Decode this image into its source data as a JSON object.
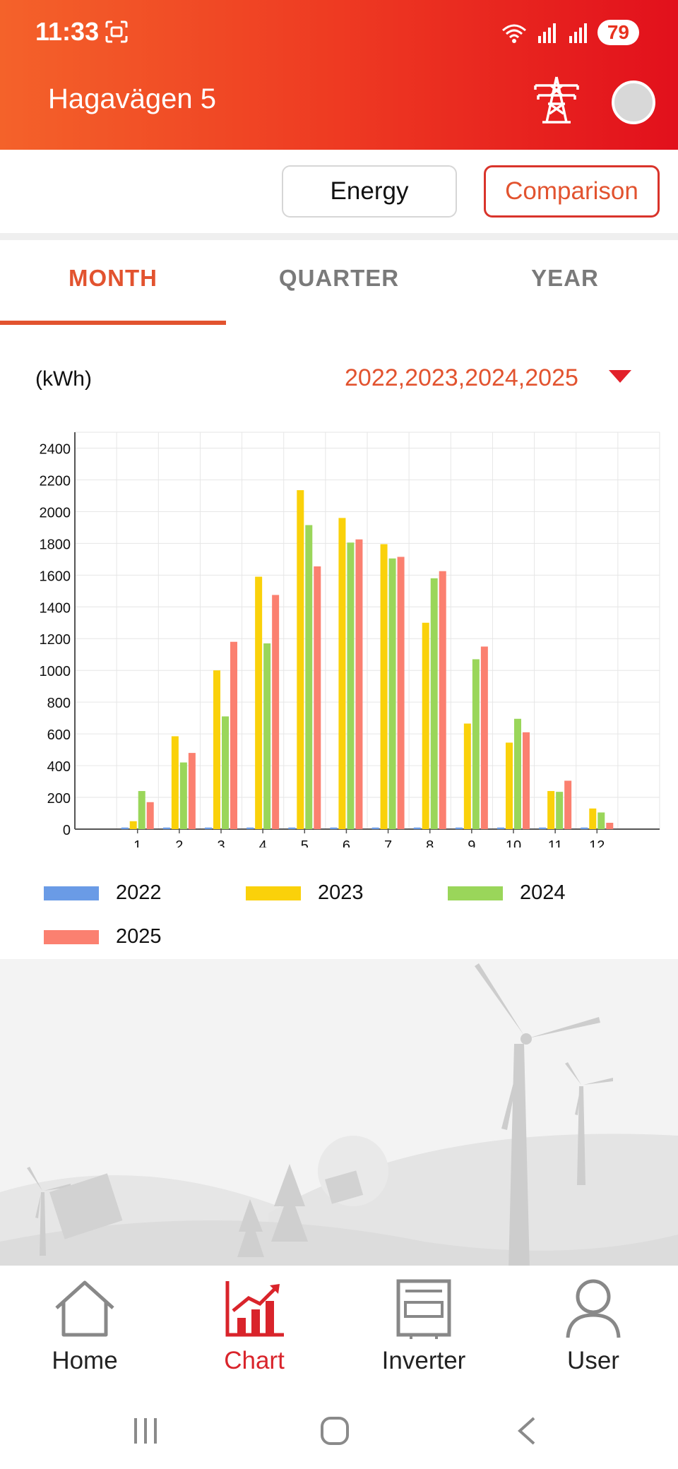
{
  "status_bar": {
    "time": "11:33",
    "battery": "79"
  },
  "header": {
    "title": "Hagavägen 5"
  },
  "mode_buttons": {
    "energy": "Energy",
    "comparison": "Comparison"
  },
  "tabs": [
    {
      "label": "MONTH",
      "active": true
    },
    {
      "label": "QUARTER",
      "active": false
    },
    {
      "label": "YEAR",
      "active": false
    }
  ],
  "unit_label": "(kWh)",
  "year_selector": {
    "value": "2022,2023,2024,2025"
  },
  "chart_data": {
    "type": "bar",
    "categories": [
      "1",
      "2",
      "3",
      "4",
      "5",
      "6",
      "7",
      "8",
      "9",
      "10",
      "11",
      "12"
    ],
    "ylim": [
      0,
      2500
    ],
    "yticks": [
      "0",
      "200",
      "400",
      "600",
      "800",
      "1000",
      "1200",
      "1400",
      "1600",
      "1800",
      "2000",
      "2200",
      "2400"
    ],
    "grid": true,
    "legend_position": "bottom",
    "series": [
      {
        "name": "2022",
        "color": "#6a9be6",
        "values": [
          10,
          10,
          10,
          10,
          10,
          10,
          10,
          10,
          10,
          10,
          10,
          10
        ]
      },
      {
        "name": "2023",
        "color": "#fad10a",
        "values": [
          50,
          585,
          1000,
          1590,
          2135,
          1960,
          1795,
          1300,
          665,
          545,
          240,
          130
        ]
      },
      {
        "name": "2024",
        "color": "#9ad65a",
        "values": [
          240,
          420,
          710,
          1170,
          1915,
          1805,
          1705,
          1580,
          1070,
          695,
          235,
          105
        ]
      },
      {
        "name": "2025",
        "color": "#fb8070",
        "values": [
          170,
          480,
          1180,
          1475,
          1655,
          1825,
          1715,
          1625,
          1150,
          610,
          305,
          40
        ]
      }
    ]
  },
  "bottom_nav": [
    {
      "label": "Home",
      "icon": "home-icon",
      "active": false
    },
    {
      "label": "Chart",
      "icon": "chart-icon",
      "active": true
    },
    {
      "label": "Inverter",
      "icon": "inverter-icon",
      "active": false
    },
    {
      "label": "User",
      "icon": "user-icon",
      "active": false
    }
  ],
  "colors": {
    "accent": "#e2532f",
    "header_start": "#f4622a",
    "header_end": "#e2101c"
  }
}
